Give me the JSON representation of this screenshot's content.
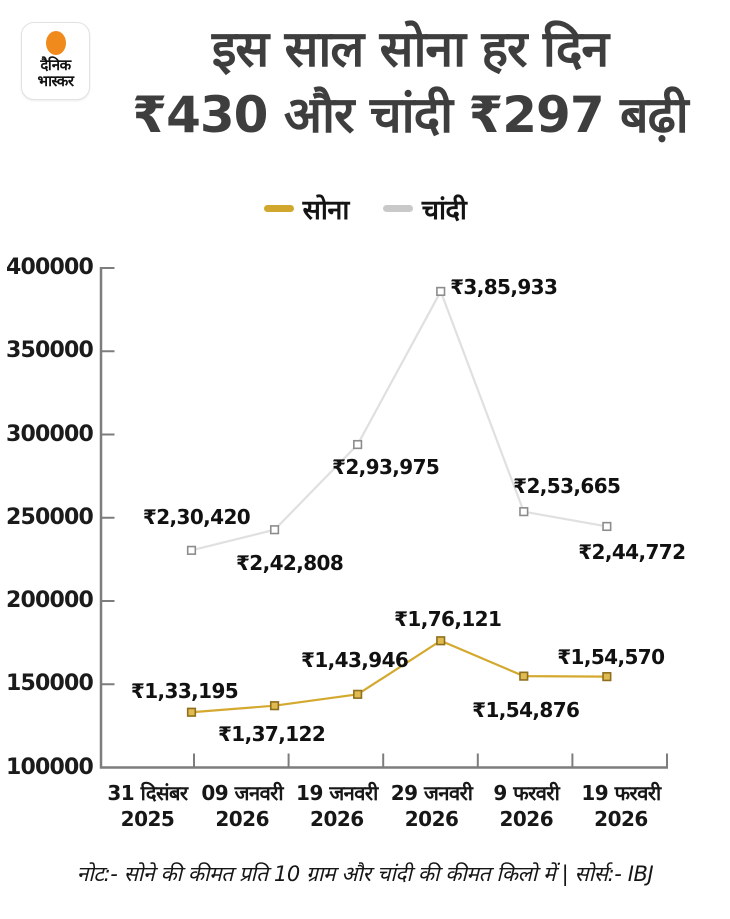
{
  "logo": {
    "name_line1": "दैनिक",
    "name_line2": "भास्कर",
    "sun_color": "#f08a1d"
  },
  "header": {
    "title_line1": "इस साल सोना हर दिन",
    "title_line2": "₹430 और चांदी ₹297 बढ़ी"
  },
  "chart_data": {
    "type": "line",
    "categories": [
      [
        "31 दिसंबर",
        "2025"
      ],
      [
        "09 जनवरी",
        "2026"
      ],
      [
        "19 जनवरी",
        "2026"
      ],
      [
        "29 जनवरी",
        "2026"
      ],
      [
        "9 फरवरी",
        "2026"
      ],
      [
        "19 फरवरी",
        "2026"
      ]
    ],
    "series": [
      {
        "name": "सोना",
        "legend_color": "#d2a72e",
        "line_color": "#d4a92f",
        "values": [
          133195,
          137122,
          143946,
          176121,
          154876,
          154570
        ],
        "labels": [
          "₹1,33,195",
          "₹1,37,122",
          "₹1,43,946",
          "₹1,76,121",
          "₹1,54,876",
          "₹1,54,570"
        ]
      },
      {
        "name": "चांदी",
        "legend_color": "#c9c9c9",
        "line_color": "#e0e0e0",
        "values": [
          230420,
          242808,
          293975,
          385933,
          253665,
          244772
        ],
        "labels": [
          "₹2,30,420",
          "₹2,42,808",
          "₹2,93,975",
          "₹3,85,933",
          "₹2,53,665",
          "₹2,44,772"
        ]
      }
    ],
    "ylim": [
      100000,
      400000
    ],
    "ytick_labels": [
      "400000",
      "350000",
      "300000",
      "250000",
      "200000",
      "150000",
      "100000"
    ],
    "grid": false,
    "legend_position": "top-center",
    "axis_color": "#7d7d7d"
  },
  "footer": {
    "note": "नोट:- सोने की कीमत प्रति 10 ग्राम और चांदी की कीमत किलो में | सोर्स:- IBJ"
  }
}
